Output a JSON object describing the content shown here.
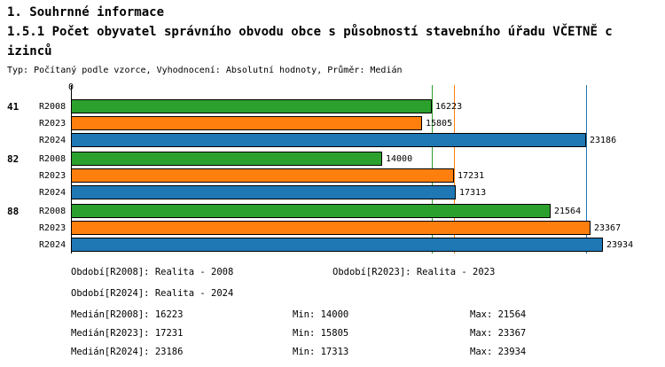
{
  "header": {
    "title": "1. Souhrnné informace",
    "subtitle_line1": "1.5.1 Počet obyvatel správního obvodu obce s působností stavebního úřadu VČETNĚ c",
    "subtitle_line2": "izinců",
    "meta": "Typ: Počítaný podle vzorce, Vyhodnocení: Absolutní hodnoty, Průměr: Medián"
  },
  "chart_data": {
    "type": "bar",
    "orientation": "horizontal",
    "title": "1.5.1 Počet obyvatel správního obvodu obce s působností stavebního úřadu VČETNĚ cizinců",
    "origin_label": "0",
    "categories": [
      "41",
      "82",
      "88"
    ],
    "series": [
      {
        "name": "R2008",
        "color": "#2ca02c",
        "values": [
          16223,
          14000,
          21564
        ]
      },
      {
        "name": "R2023",
        "color": "#ff7f0e",
        "values": [
          15805,
          17231,
          23367
        ]
      },
      {
        "name": "R2024",
        "color": "#1f77b4",
        "values": [
          23186,
          17313,
          23934
        ]
      }
    ],
    "xlim": [
      0,
      23934
    ],
    "grid": false,
    "legend_position": "none",
    "median_lines": [
      {
        "series": "R2008",
        "value": 16223,
        "color": "#2ca02c"
      },
      {
        "series": "R2023",
        "value": 17231,
        "color": "#ff7f0e"
      },
      {
        "series": "R2024",
        "value": 23186,
        "color": "#1f77b4"
      }
    ]
  },
  "footer": {
    "obdobi_r2008": "Období[R2008]: Realita - 2008",
    "obdobi_r2023": "Období[R2023]: Realita - 2023",
    "obdobi_r2024": "Období[R2024]: Realita - 2024",
    "median_r2008": "Medián[R2008]: 16223",
    "median_r2023": "Medián[R2023]: 17231",
    "median_r2024": "Medián[R2024]: 23186",
    "min_r2008": "Min: 14000",
    "min_r2023": "Min: 15805",
    "min_r2024": "Min: 17313",
    "max_r2008": "Max: 21564",
    "max_r2023": "Max: 23367",
    "max_r2024": "Max: 23934"
  }
}
